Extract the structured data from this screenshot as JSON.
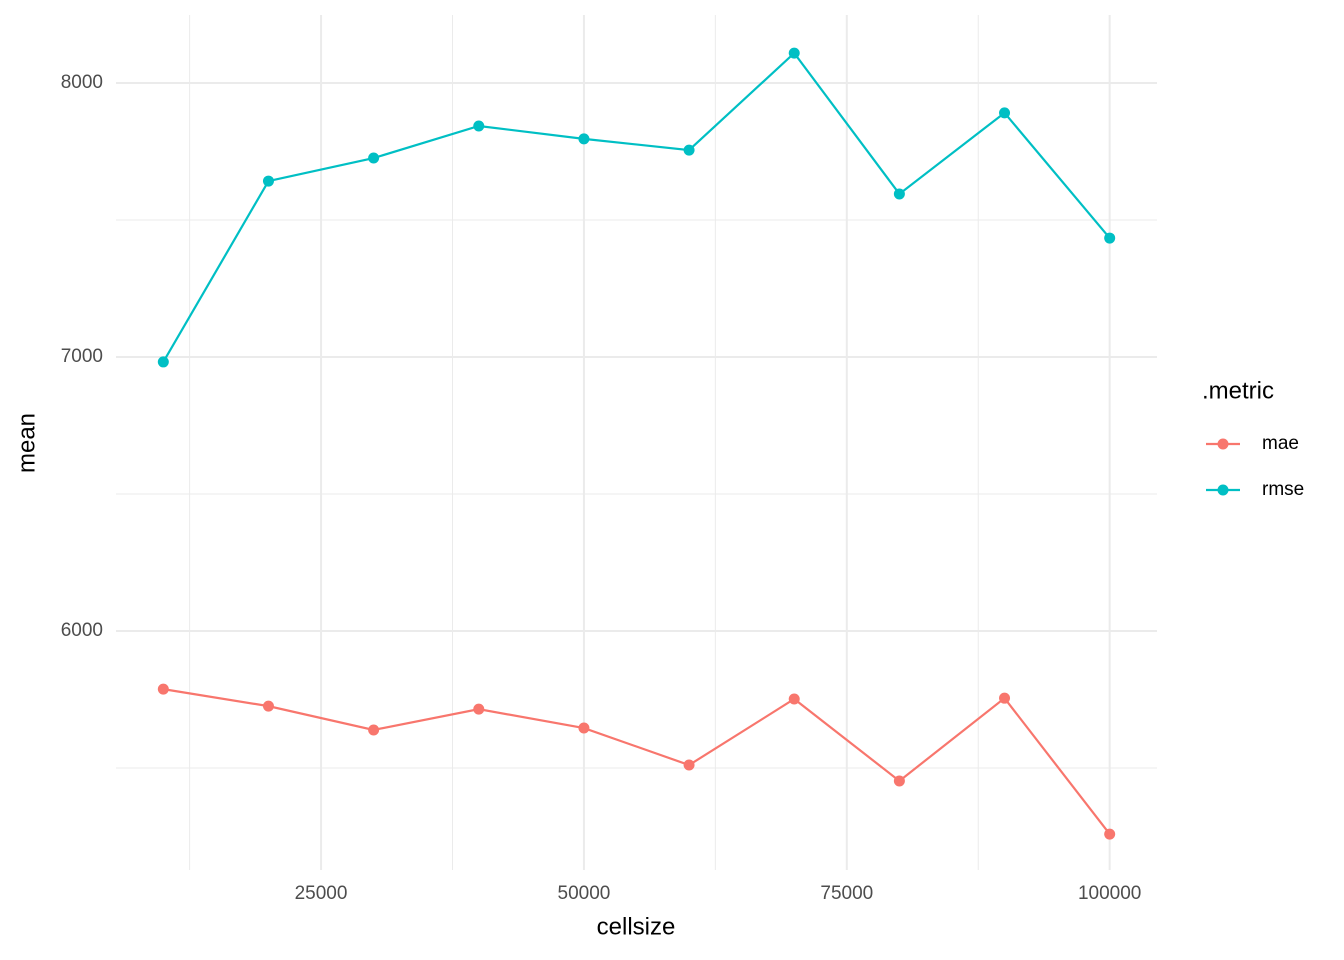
{
  "chart_data": {
    "type": "line",
    "x_label": "cellsize",
    "y_label": "mean",
    "legend_title": ".metric",
    "x": [
      10000,
      20000,
      30000,
      40000,
      50000,
      60000,
      70000,
      80000,
      90000,
      100000
    ],
    "series": [
      {
        "name": "mae",
        "color": "#F8766D",
        "values": [
          5788,
          5726,
          5639,
          5715,
          5646,
          5511,
          5752,
          5453,
          5755,
          5259
        ]
      },
      {
        "name": "rmse",
        "color": "#00BFC4",
        "values": [
          6982,
          7642,
          7726,
          7843,
          7796,
          7755,
          8109,
          7595,
          7891,
          7434
        ]
      }
    ],
    "xlim": [
      5500,
      104500
    ],
    "xticks": [
      25000,
      50000,
      75000,
      100000
    ],
    "ylim": [
      5128,
      8248
    ],
    "yticks": [
      6000,
      7000,
      8000
    ],
    "grid": true,
    "legend_position": "right"
  }
}
